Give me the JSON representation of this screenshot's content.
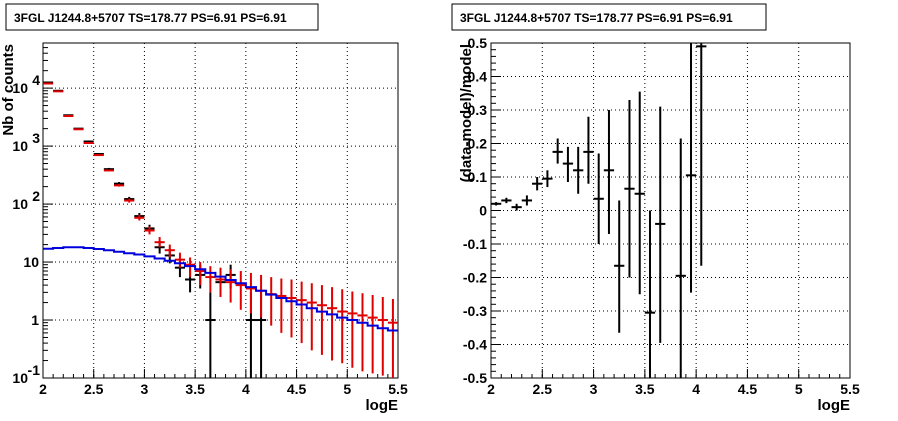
{
  "chart_data": [
    {
      "type": "scatter",
      "title": "3FGL J1244.8+5707 TS=178.77 PS=6.91 PS=6.91",
      "xlabel": "logE",
      "ylabel": "Nb of counts",
      "xlim": [
        2,
        5.5
      ],
      "ylim": [
        0.1,
        60000
      ],
      "yscale": "log",
      "grid": true,
      "x_ticks": [
        "2",
        "2.5",
        "3",
        "3.5",
        "4",
        "4.5",
        "5",
        "5.5"
      ],
      "y_ticks": [
        {
          "v": 0.1,
          "base": "10",
          "exp": "-1"
        },
        {
          "v": 1,
          "base": "1",
          "exp": ""
        },
        {
          "v": 10,
          "base": "10",
          "exp": ""
        },
        {
          "v": 100,
          "base": "10",
          "exp": "2"
        },
        {
          "v": 1000,
          "base": "10",
          "exp": "3"
        },
        {
          "v": 10000,
          "base": "10",
          "exp": "4"
        }
      ],
      "series": [
        {
          "color": "#000000",
          "marker": "cross",
          "points": [
            {
              "x": 2.05,
              "y": 12500,
              "lo": 12300,
              "hi": 12700
            },
            {
              "x": 2.15,
              "y": 9000,
              "lo": 8800,
              "hi": 9200
            },
            {
              "x": 2.25,
              "y": 3400,
              "lo": 3300,
              "hi": 3500
            },
            {
              "x": 2.35,
              "y": 2000,
              "lo": 1950,
              "hi": 2050
            },
            {
              "x": 2.45,
              "y": 1200,
              "lo": 1150,
              "hi": 1250
            },
            {
              "x": 2.55,
              "y": 730,
              "lo": 700,
              "hi": 760
            },
            {
              "x": 2.65,
              "y": 400,
              "lo": 380,
              "hi": 420
            },
            {
              "x": 2.75,
              "y": 225,
              "lo": 210,
              "hi": 240
            },
            {
              "x": 2.85,
              "y": 122,
              "lo": 112,
              "hi": 133
            },
            {
              "x": 2.95,
              "y": 62,
              "lo": 55,
              "hi": 70
            },
            {
              "x": 3.05,
              "y": 38,
              "lo": 32,
              "hi": 44
            },
            {
              "x": 3.15,
              "y": 18,
              "lo": 14,
              "hi": 23
            },
            {
              "x": 3.25,
              "y": 13,
              "lo": 9.5,
              "hi": 17
            },
            {
              "x": 3.35,
              "y": 8,
              "lo": 5.5,
              "hi": 11.5
            },
            {
              "x": 3.45,
              "y": 5,
              "lo": 3,
              "hi": 7.5
            },
            {
              "x": 3.55,
              "y": 6,
              "lo": 3.5,
              "hi": 9
            },
            {
              "x": 3.65,
              "y": 1,
              "lo": 0.1,
              "hi": 3
            },
            {
              "x": 3.75,
              "y": 4.5,
              "lo": 2.5,
              "hi": 7
            },
            {
              "x": 3.85,
              "y": 6,
              "lo": 3.5,
              "hi": 9
            },
            {
              "x": 4.05,
              "y": 1,
              "lo": 0.1,
              "hi": 3
            },
            {
              "x": 4.15,
              "y": 1,
              "lo": 0.1,
              "hi": 3
            }
          ]
        },
        {
          "color": "#e00000",
          "marker": "cross",
          "points": [
            {
              "x": 2.05,
              "y": 12000,
              "lo": 11900,
              "hi": 12100
            },
            {
              "x": 2.15,
              "y": 8800,
              "lo": 8700,
              "hi": 8900
            },
            {
              "x": 2.25,
              "y": 3300,
              "lo": 3250,
              "hi": 3350
            },
            {
              "x": 2.35,
              "y": 1950,
              "lo": 1920,
              "hi": 1980
            },
            {
              "x": 2.45,
              "y": 1130,
              "lo": 1110,
              "hi": 1150
            },
            {
              "x": 2.55,
              "y": 700,
              "lo": 685,
              "hi": 715
            },
            {
              "x": 2.65,
              "y": 380,
              "lo": 370,
              "hi": 392
            },
            {
              "x": 2.75,
              "y": 210,
              "lo": 200,
              "hi": 222
            },
            {
              "x": 2.85,
              "y": 115,
              "lo": 106,
              "hi": 124
            },
            {
              "x": 2.95,
              "y": 58,
              "lo": 52,
              "hi": 65
            },
            {
              "x": 3.05,
              "y": 35,
              "lo": 30,
              "hi": 41
            },
            {
              "x": 3.15,
              "y": 22,
              "lo": 18,
              "hi": 27
            },
            {
              "x": 3.25,
              "y": 16,
              "lo": 12,
              "hi": 20
            },
            {
              "x": 3.35,
              "y": 11,
              "lo": 8,
              "hi": 14.5
            },
            {
              "x": 3.45,
              "y": 9,
              "lo": 5.5,
              "hi": 12
            },
            {
              "x": 3.55,
              "y": 7,
              "lo": 4,
              "hi": 10
            },
            {
              "x": 3.65,
              "y": 5.5,
              "lo": 3,
              "hi": 8.5
            },
            {
              "x": 3.75,
              "y": 5,
              "lo": 2.5,
              "hi": 8
            },
            {
              "x": 3.85,
              "y": 4.5,
              "lo": 2,
              "hi": 7.5
            },
            {
              "x": 3.95,
              "y": 4,
              "lo": 1.5,
              "hi": 7
            },
            {
              "x": 4.05,
              "y": 3.5,
              "lo": 1.3,
              "hi": 6.5
            },
            {
              "x": 4.15,
              "y": 3.2,
              "lo": 1.1,
              "hi": 6
            },
            {
              "x": 4.25,
              "y": 2.8,
              "lo": 0.8,
              "hi": 5.5
            },
            {
              "x": 4.35,
              "y": 2.6,
              "lo": 0.6,
              "hi": 5.2
            },
            {
              "x": 4.45,
              "y": 2.4,
              "lo": 0.5,
              "hi": 5
            },
            {
              "x": 4.55,
              "y": 2.2,
              "lo": 0.4,
              "hi": 4.6
            },
            {
              "x": 4.65,
              "y": 2,
              "lo": 0.3,
              "hi": 4.3
            },
            {
              "x": 4.75,
              "y": 1.8,
              "lo": 0.25,
              "hi": 4
            },
            {
              "x": 4.85,
              "y": 1.6,
              "lo": 0.2,
              "hi": 3.7
            },
            {
              "x": 4.95,
              "y": 1.4,
              "lo": 0.18,
              "hi": 3.4
            },
            {
              "x": 5.05,
              "y": 1.3,
              "lo": 0.15,
              "hi": 3.1
            },
            {
              "x": 5.15,
              "y": 1.2,
              "lo": 0.13,
              "hi": 2.9
            },
            {
              "x": 5.25,
              "y": 1.1,
              "lo": 0.12,
              "hi": 2.7
            },
            {
              "x": 5.35,
              "y": 1.0,
              "lo": 0.11,
              "hi": 2.5
            },
            {
              "x": 5.45,
              "y": 0.9,
              "lo": 0.1,
              "hi": 2.3
            }
          ]
        },
        {
          "color": "#0000dd",
          "marker": "step",
          "points": [
            {
              "x": 2.0,
              "y": 17.0
            },
            {
              "x": 2.1,
              "y": 17.5
            },
            {
              "x": 2.2,
              "y": 18.0
            },
            {
              "x": 2.3,
              "y": 18.0
            },
            {
              "x": 2.4,
              "y": 17.5
            },
            {
              "x": 2.5,
              "y": 16.8
            },
            {
              "x": 2.6,
              "y": 16.0
            },
            {
              "x": 2.7,
              "y": 15.0
            },
            {
              "x": 2.8,
              "y": 14.2
            },
            {
              "x": 2.9,
              "y": 13.5
            },
            {
              "x": 3.0,
              "y": 12.5
            },
            {
              "x": 3.1,
              "y": 11.5
            },
            {
              "x": 3.2,
              "y": 10.5
            },
            {
              "x": 3.3,
              "y": 9.5
            },
            {
              "x": 3.4,
              "y": 8.5
            },
            {
              "x": 3.5,
              "y": 7.5
            },
            {
              "x": 3.6,
              "y": 6.5
            },
            {
              "x": 3.7,
              "y": 5.6
            },
            {
              "x": 3.8,
              "y": 4.9
            },
            {
              "x": 3.9,
              "y": 4.3
            },
            {
              "x": 4.0,
              "y": 3.7
            },
            {
              "x": 4.1,
              "y": 3.2
            },
            {
              "x": 4.2,
              "y": 2.75
            },
            {
              "x": 4.3,
              "y": 2.4
            },
            {
              "x": 4.4,
              "y": 2.1
            },
            {
              "x": 4.5,
              "y": 1.85
            },
            {
              "x": 4.6,
              "y": 1.6
            },
            {
              "x": 4.7,
              "y": 1.4
            },
            {
              "x": 4.8,
              "y": 1.25
            },
            {
              "x": 4.9,
              "y": 1.1
            },
            {
              "x": 5.0,
              "y": 1.0
            },
            {
              "x": 5.1,
              "y": 0.9
            },
            {
              "x": 5.2,
              "y": 0.8
            },
            {
              "x": 5.3,
              "y": 0.72
            },
            {
              "x": 5.4,
              "y": 0.66
            }
          ]
        }
      ]
    },
    {
      "type": "scatter",
      "title": "3FGL J1244.8+5707 TS=178.77 PS=6.91 PS=6.91",
      "xlabel": "logE",
      "ylabel": "(data-model)/model",
      "xlim": [
        2,
        5.5
      ],
      "ylim": [
        -0.5,
        0.5
      ],
      "yscale": "linear",
      "grid": true,
      "x_ticks": [
        "2",
        "2.5",
        "3",
        "3.5",
        "4",
        "4.5",
        "5",
        "5.5"
      ],
      "y_ticks": [
        "-0.5",
        "-0.4",
        "-0.3",
        "-0.2",
        "-0.1",
        "0",
        "0.1",
        "0.2",
        "0.3",
        "0.4",
        "0.5"
      ],
      "series": [
        {
          "color": "#000000",
          "marker": "cross",
          "points": [
            {
              "x": 2.05,
              "y": 0.02,
              "lo": 0.015,
              "hi": 0.025
            },
            {
              "x": 2.15,
              "y": 0.03,
              "lo": 0.022,
              "hi": 0.038
            },
            {
              "x": 2.25,
              "y": 0.01,
              "lo": 0.0,
              "hi": 0.02
            },
            {
              "x": 2.35,
              "y": 0.03,
              "lo": 0.015,
              "hi": 0.045
            },
            {
              "x": 2.45,
              "y": 0.08,
              "lo": 0.06,
              "hi": 0.1
            },
            {
              "x": 2.55,
              "y": 0.095,
              "lo": 0.07,
              "hi": 0.12
            },
            {
              "x": 2.65,
              "y": 0.175,
              "lo": 0.14,
              "hi": 0.215
            },
            {
              "x": 2.75,
              "y": 0.14,
              "lo": 0.085,
              "hi": 0.19
            },
            {
              "x": 2.85,
              "y": 0.12,
              "lo": 0.05,
              "hi": 0.19
            },
            {
              "x": 2.95,
              "y": 0.175,
              "lo": 0.08,
              "hi": 0.28
            },
            {
              "x": 3.05,
              "y": 0.035,
              "lo": -0.1,
              "hi": 0.17
            },
            {
              "x": 3.15,
              "y": 0.12,
              "lo": -0.07,
              "hi": 0.3
            },
            {
              "x": 3.25,
              "y": -0.165,
              "lo": -0.365,
              "hi": 0.03
            },
            {
              "x": 3.35,
              "y": 0.065,
              "lo": -0.2,
              "hi": 0.33
            },
            {
              "x": 3.45,
              "y": 0.05,
              "lo": -0.25,
              "hi": 0.355
            },
            {
              "x": 3.55,
              "y": -0.305,
              "lo": -0.5,
              "hi": 0.0
            },
            {
              "x": 3.65,
              "y": -0.04,
              "lo": -0.395,
              "hi": 0.31
            },
            {
              "x": 3.85,
              "y": -0.195,
              "lo": -0.5,
              "hi": 0.215
            },
            {
              "x": 3.95,
              "y": 0.105,
              "lo": -0.245,
              "hi": 0.5
            },
            {
              "x": 4.05,
              "y": 0.49,
              "lo": -0.165,
              "hi": 0.5
            }
          ]
        }
      ]
    }
  ]
}
